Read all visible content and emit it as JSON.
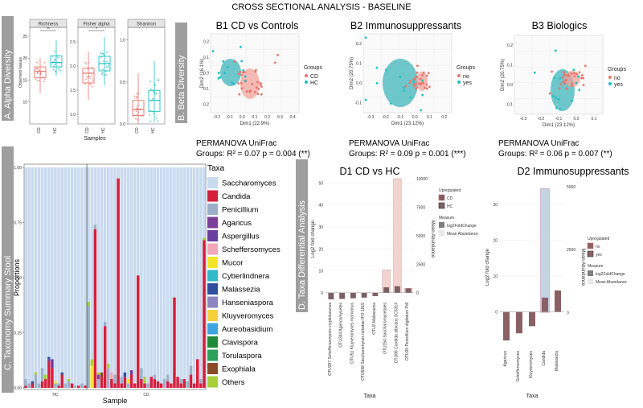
{
  "figure": {
    "title": "CROSS SECTIONAL ANALYSIS - BASELINE",
    "section_a": "A. Alpha Diversity",
    "section_b": "B. Beta Diversity",
    "section_c": "C. Taxonomy Summary Stool",
    "section_d": "D. Taxa Differential Analysis"
  },
  "colors": {
    "cd": "#e8756b",
    "hc": "#1fbfc4",
    "ellipse_cd": "#f1a39a",
    "ellipse_hc": "#3fb6bb",
    "sidebar": "#9e9e9e",
    "bar_fc": "#7a6063",
    "bar_mean": "#f2d3d0",
    "bar_fc_d2": "#8a6266",
    "bar_mean_d2": "#c5d3e3"
  },
  "chart_data": [
    {
      "id": "A",
      "type": "box",
      "ylabel": "Observed Values",
      "xlabel": "Samples",
      "groups": [
        "CD",
        "HC"
      ],
      "panels": [
        {
          "name": "Richness",
          "yticks": [
            "10",
            "15",
            "20",
            "25"
          ],
          "ylim": [
            5,
            27
          ],
          "sig": "**",
          "boxes": [
            {
              "group": "CD",
              "q1": 15.5,
              "median": 17,
              "q3": 18,
              "min": 12,
              "max": 20
            },
            {
              "group": "HC",
              "q1": 18,
              "median": 19,
              "q3": 20.5,
              "min": 16,
              "max": 24
            }
          ]
        },
        {
          "name": "Fisher alpha",
          "yticks": [
            "1.0",
            "1.5",
            "2.0",
            "2.5"
          ],
          "ylim": [
            0.8,
            2.8
          ],
          "sig": "*",
          "boxes": [
            {
              "group": "CD",
              "q1": 1.65,
              "median": 1.85,
              "q3": 1.95,
              "min": 1.3,
              "max": 2.3
            },
            {
              "group": "HC",
              "q1": 1.9,
              "median": 2.05,
              "q3": 2.2,
              "min": 1.6,
              "max": 2.6
            }
          ]
        },
        {
          "name": "Shannon",
          "yticks": [
            "0.0",
            "0.5",
            "1.0"
          ],
          "ylim": [
            0,
            1.15
          ],
          "sig": "",
          "boxes": [
            {
              "group": "CD",
              "q1": 0.1,
              "median": 0.17,
              "q3": 0.28,
              "min": 0.0,
              "max": 0.6
            },
            {
              "group": "HC",
              "q1": 0.15,
              "median": 0.28,
              "q3": 0.4,
              "min": 0.02,
              "max": 0.75
            }
          ]
        }
      ]
    },
    {
      "id": "B",
      "type": "scatter",
      "panels": [
        {
          "title": "B1 CD vs Controls",
          "xlabel": "Dim1 (22.9%)",
          "ylabel": "Dim2 (16.1%)",
          "legend_title": "Groups",
          "legend": [
            "CD",
            "HC"
          ],
          "xticks": [
            "-0.2",
            "-0.1",
            "0.0",
            "0.1",
            "0.2",
            "0.3",
            "0.4"
          ],
          "yticks": [
            "0.2",
            "0.1",
            "0.0",
            "-0.1",
            "-0.2"
          ],
          "stat_title": "PERMANOVA UniFrac",
          "stat": "Groups: R² = 0.07 p = 0.004 (**)"
        },
        {
          "title": "B2 Immunosuppressants",
          "xlabel": "Dim1 (23.12%)",
          "ylabel": "Dim2 (20.75%)",
          "legend_title": "Groups",
          "legend": [
            "no",
            "yes"
          ],
          "xticks": [
            "-0.3",
            "-0.2",
            "-0.1",
            "0.0",
            "0.1",
            "0.2"
          ],
          "yticks": [
            "0.2",
            "0.1",
            "0.0",
            "-0.1"
          ],
          "stat_title": "PERMANOVA UniFrac",
          "stat": "Groups: R² = 0.09 p = 0.001 (***)"
        },
        {
          "title": "B3 Biologics",
          "xlabel": "Dim1 (23.12%)",
          "ylabel": "Dim2 (20.75%)",
          "legend_title": "Groups",
          "legend": [
            "no",
            "yes"
          ],
          "xticks": [
            "-0.3",
            "-0.2",
            "-0.1",
            "0.0",
            "0.1"
          ],
          "yticks": [
            "0.2",
            "0.1",
            "0.0",
            "-0.1"
          ],
          "stat_title": "PERMANOVA UniFrac",
          "stat": "Groups: R² = 0.06 p = 0.007 (**)"
        }
      ]
    },
    {
      "id": "C",
      "type": "bar",
      "stacked": true,
      "ylabel": "Proportions",
      "xlabel": "Sample",
      "yticks": [
        "0.00",
        "0.25",
        "0.50",
        "0.75",
        "1.00"
      ],
      "group_labels": [
        "HC",
        "CD"
      ],
      "n_hc": 19,
      "n_cd": 36,
      "legend_title": "Taxa",
      "taxa": [
        {
          "name": "Saccharomyces",
          "color": "#c9daef"
        },
        {
          "name": "Candida",
          "color": "#d61f3d"
        },
        {
          "name": "Penicillium",
          "color": "#9bb0c8"
        },
        {
          "name": "Agaricus",
          "color": "#7b3f98"
        },
        {
          "name": "Aspergillus",
          "color": "#6b3fa0"
        },
        {
          "name": "Scheffersomyces",
          "color": "#f0a7b8"
        },
        {
          "name": "Mucor",
          "color": "#f5e52a"
        },
        {
          "name": "Cyberlindnera",
          "color": "#2fb9c9"
        },
        {
          "name": "Malassezia",
          "color": "#2f4f9e"
        },
        {
          "name": "Hanseniaspora",
          "color": "#8e86c2"
        },
        {
          "name": "Kluyveromyces",
          "color": "#f5cf3a"
        },
        {
          "name": "Aureobasidium",
          "color": "#3da4e0"
        },
        {
          "name": "Clavispora",
          "color": "#1f8a3b"
        },
        {
          "name": "Torulaspora",
          "color": "#2aa05a"
        },
        {
          "name": "Exophiala",
          "color": "#8b4a2a"
        },
        {
          "name": "Others",
          "color": "#a8cf3a"
        }
      ],
      "samples_hc": [
        {
          "Candida": 0.01,
          "Penicillium": 0.03
        },
        {
          "Penicillium": 0.02
        },
        {
          "Candida": 0.02,
          "Malassezia": 0.01
        },
        {
          "Penicillium": 0.06,
          "Others": 0.01
        },
        {
          "Penicillium": 0.02
        },
        {
          "Candida": 0.03,
          "Penicillium": 0.06
        },
        {
          "Candida": 0.04,
          "Others": 0.02
        },
        {
          "Candida": 0.12,
          "Agaricus": 0.01,
          "Malassezia": 0.01
        },
        {
          "Candida": 0.09,
          "Aspergillus": 0.04
        },
        {
          "Penicillium": 0.02,
          "Mucor": 0.01
        },
        {
          "Candida": 0.01,
          "Penicillium": 0.01
        },
        {
          "Candida": 0.06,
          "Malassezia": 0.01
        },
        {
          "Penicillium": 0.02
        },
        {
          "Penicillium": 0.03,
          "Others": 0.01
        },
        {
          "Candida": 0.02
        },
        {
          "Penicillium": 0.01
        },
        {
          "Candida": 0.01
        },
        {
          "Penicillium": 0.02
        },
        {
          "Candida": 0.01
        }
      ],
      "samples_cd": [
        {
          "Penicillium": 0.37,
          "Others": 0.02
        },
        {
          "Mucor": 0.1,
          "Others": 0.03
        },
        {
          "Candida": 0.72,
          "Penicillium": 0.02
        },
        {
          "Penicillium": 0.04,
          "Agaricus": 0.02,
          "Others": 0.01
        },
        {
          "Candida": 0.05,
          "Exophiala": 0.02
        },
        {
          "Candida": 0.28,
          "Penicillium": 0.02
        },
        {
          "Penicillium": 0.09,
          "Others": 0.02
        },
        {
          "Candida": 0.04,
          "Scheffersomyces": 0.03
        },
        {
          "Candida": 0.02,
          "Penicillium": 0.04
        },
        {
          "Candida": 0.95
        },
        {
          "Candida": 0.02,
          "Penicillium": 0.03
        },
        {
          "Candida": 0.05,
          "Malassezia": 0.02
        },
        {
          "Penicillium": 0.02,
          "Mucor": 0.02
        },
        {
          "Candida": 0.06,
          "Aspergillus": 0.02
        },
        {
          "Candida": 0.02
        },
        {
          "Candida": 0.51
        },
        {
          "Candida": 0.04,
          "Penicillium": 0.05
        },
        {
          "Candida": 0.02,
          "Others": 0.03
        },
        {
          "Penicillium": 0.02
        },
        {
          "Candida": 0.05
        },
        {
          "Candida": 0.04,
          "Penicillium": 0.02
        },
        {
          "Candida": 0.03
        },
        {
          "Candida": 0.02
        },
        {
          "Penicillium": 0.04
        },
        {
          "Candida": 0.03,
          "Penicillium": 0.03
        },
        {
          "Candida": 0.02
        },
        {
          "Candida": 0.41
        },
        {
          "Candida": 0.05
        },
        {
          "Candida": 0.02,
          "Penicillium": 0.02
        },
        {
          "Candida": 0.04
        },
        {
          "Penicillium": 0.03
        },
        {
          "Candida": 0.06,
          "Penicillium": 0.04
        },
        {
          "Candida": 0.02
        },
        {
          "Candida": 0.13
        },
        {
          "Candida": 0.02,
          "Penicillium": 0.02
        },
        {
          "Candida": 0.67,
          "Others": 0.01
        }
      ]
    },
    {
      "id": "D1",
      "type": "bar",
      "title": "D1 CD vs HC",
      "ylabel": "Log2 fold change",
      "ylabel_right": "Mean Abundance",
      "xlabel": "Taxa",
      "yticks": [
        "0",
        "10",
        "20",
        "30",
        "40",
        "50"
      ],
      "yticks_right": [
        "0",
        "2500",
        "5000",
        "7500",
        "10000"
      ],
      "ylim": [
        -3,
        52
      ],
      "ylim_right": [
        -577,
        10000
      ],
      "categories": [
        "OTU297 Scheffersomyces cryptolucanus",
        "OTU344 Agaricomycetes",
        "OTU51 Kluyveromyces marxianus",
        "OTU698 Saccharomyces mikatae IFO 1815",
        "OTU2 Malassezia",
        "OTU150 Saccharomycetales",
        "OTU86 Candida albicans SC5314",
        "OTU20 Penicillium digitatum PdI"
      ],
      "log2FoldChange": [
        -3,
        -2.8,
        -2.5,
        -2.2,
        -1.5,
        2.5,
        3,
        2
      ],
      "mean_abundance": [
        0,
        0,
        0,
        0,
        0,
        2000,
        10000,
        400
      ],
      "legend_up_title": "Upregulated",
      "legend_up": [
        "CD",
        "HC"
      ],
      "legend_measure_title": "Measure",
      "legend_measure": [
        "log2FoldChange",
        "Mean Abundance"
      ]
    },
    {
      "id": "D2",
      "type": "bar",
      "title": "D2 Immunosuppressants",
      "ylabel": "Log2 fold change",
      "ylabel_right": "Mean Abundance",
      "xlabel": "Taxa",
      "yticks": [
        "0",
        "10",
        "20",
        "30"
      ],
      "yticks_right": [
        "0",
        "2500",
        "5000"
      ],
      "ylim": [
        -10,
        35
      ],
      "ylim_right": [
        -1400,
        5000
      ],
      "categories": [
        "Agaricus",
        "Scheffersomyces",
        "Kluyveromyces",
        "Candida",
        "Malassezia"
      ],
      "log2FoldChange": [
        -8,
        -6,
        -4,
        4,
        6
      ],
      "mean_abundance": [
        0,
        0,
        0,
        4930,
        0
      ],
      "legend_up_title": "Upregulated",
      "legend_up": [
        "no",
        "yes"
      ],
      "legend_measure_title": "Measure",
      "legend_measure": [
        "log2FoldChange",
        "Mean Abundance"
      ]
    }
  ]
}
